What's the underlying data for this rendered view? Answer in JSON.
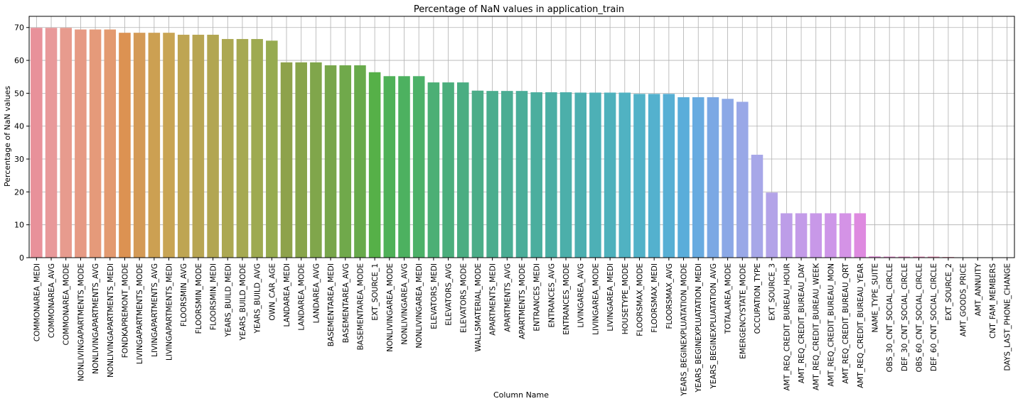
{
  "chart_data": {
    "type": "bar",
    "title": "Percentage of NaN values in application_train",
    "xlabel": "Column Name",
    "ylabel": "Percentage of NaN values",
    "ylim": [
      0,
      73.4
    ],
    "yticks": [
      0,
      10,
      20,
      30,
      40,
      50,
      60,
      70
    ],
    "grid": true,
    "categories": [
      "COMMONAREA_MEDI",
      "COMMONAREA_AVG",
      "COMMONAREA_MODE",
      "NONLIVINGAPARTMENTS_MODE",
      "NONLIVINGAPARTMENTS_AVG",
      "NONLIVINGAPARTMENTS_MEDI",
      "FONDKAPREMONT_MODE",
      "LIVINGAPARTMENTS_MODE",
      "LIVINGAPARTMENTS_AVG",
      "LIVINGAPARTMENTS_MEDI",
      "FLOORSMIN_AVG",
      "FLOORSMIN_MODE",
      "FLOORSMIN_MEDI",
      "YEARS_BUILD_MEDI",
      "YEARS_BUILD_MODE",
      "YEARS_BUILD_AVG",
      "OWN_CAR_AGE",
      "LANDAREA_MEDI",
      "LANDAREA_MODE",
      "LANDAREA_AVG",
      "BASEMENTAREA_MEDI",
      "BASEMENTAREA_AVG",
      "BASEMENTAREA_MODE",
      "EXT_SOURCE_1",
      "NONLIVINGAREA_MODE",
      "NONLIVINGAREA_AVG",
      "NONLIVINGAREA_MEDI",
      "ELEVATORS_MEDI",
      "ELEVATORS_AVG",
      "ELEVATORS_MODE",
      "WALLSMATERIAL_MODE",
      "APARTMENTS_MEDI",
      "APARTMENTS_AVG",
      "APARTMENTS_MODE",
      "ENTRANCES_MEDI",
      "ENTRANCES_AVG",
      "ENTRANCES_MODE",
      "LIVINGAREA_AVG",
      "LIVINGAREA_MODE",
      "LIVINGAREA_MEDI",
      "HOUSETYPE_MODE",
      "FLOORSMAX_MODE",
      "FLOORSMAX_MEDI",
      "FLOORSMAX_AVG",
      "YEARS_BEGINEXPLUATATION_MODE",
      "YEARS_BEGINEXPLUATATION_MEDI",
      "YEARS_BEGINEXPLUATATION_AVG",
      "TOTALAREA_MODE",
      "EMERGENCYSTATE_MODE",
      "OCCUPATION_TYPE",
      "EXT_SOURCE_3",
      "AMT_REQ_CREDIT_BUREAU_HOUR",
      "AMT_REQ_CREDIT_BUREAU_DAY",
      "AMT_REQ_CREDIT_BUREAU_WEEK",
      "AMT_REQ_CREDIT_BUREAU_MON",
      "AMT_REQ_CREDIT_BUREAU_QRT",
      "AMT_REQ_CREDIT_BUREAU_YEAR",
      "NAME_TYPE_SUITE",
      "OBS_30_CNT_SOCIAL_CIRCLE",
      "DEF_30_CNT_SOCIAL_CIRCLE",
      "OBS_60_CNT_SOCIAL_CIRCLE",
      "DEF_60_CNT_SOCIAL_CIRCLE",
      "EXT_SOURCE_2",
      "AMT_GOODS_PRICE",
      "AMT_ANNUITY",
      "CNT_FAM_MEMBERS",
      "DAYS_LAST_PHONE_CHANGE"
    ],
    "values": [
      69.9,
      69.9,
      69.9,
      69.4,
      69.4,
      69.4,
      68.4,
      68.4,
      68.4,
      68.4,
      67.8,
      67.8,
      67.8,
      66.5,
      66.5,
      66.5,
      66.0,
      59.4,
      59.4,
      59.4,
      58.5,
      58.5,
      58.5,
      56.4,
      55.2,
      55.2,
      55.2,
      53.3,
      53.3,
      53.3,
      50.8,
      50.7,
      50.7,
      50.7,
      50.3,
      50.3,
      50.3,
      50.2,
      50.2,
      50.2,
      50.2,
      49.8,
      49.8,
      49.8,
      48.8,
      48.8,
      48.8,
      48.3,
      47.4,
      31.3,
      19.8,
      13.5,
      13.5,
      13.5,
      13.5,
      13.5,
      13.5,
      0.4,
      0.33,
      0.33,
      0.33,
      0.33,
      0.21,
      0.09,
      0.004,
      0.001,
      0.0003
    ],
    "colors": [
      "#e8919a",
      "#e8999a",
      "#e79b8e",
      "#e69a84",
      "#e59a7a",
      "#e39a70",
      "#dc9252",
      "#d49a56",
      "#cca052",
      "#c8a453",
      "#bea553",
      "#b8a553",
      "#b2a652",
      "#aca852",
      "#a6a952",
      "#9eaa51",
      "#96ab50",
      "#8ea24b",
      "#88a44b",
      "#80a64b",
      "#78a64b",
      "#70a94b",
      "#68aa4b",
      "#56b048",
      "#4fb158",
      "#4db160",
      "#4cb168",
      "#4caf75",
      "#4bae7c",
      "#4bad82",
      "#4bad88",
      "#4bad8e",
      "#4bad93",
      "#4bad99",
      "#4bae9e",
      "#4baea4",
      "#4cafaa",
      "#4cafb0",
      "#4db0b6",
      "#4eb1bc",
      "#50b2c2",
      "#52b2c8",
      "#54b1ce",
      "#57afd4",
      "#5aadda",
      "#68abe0",
      "#7ba8e4",
      "#8ba8e6",
      "#99a8e7",
      "#a7a7e8",
      "#b3a3e8",
      "#bd9de8",
      "#c39be8",
      "#c898e8",
      "#cd96e8",
      "#d493e6",
      "#de8ae0",
      "#e28fd8",
      "#e48ecf",
      "#e58ec7",
      "#e68fbe",
      "#e78fb6",
      "#e891ad",
      "#e892a6",
      "#e8939f",
      "#e8949a",
      "#e89598"
    ]
  }
}
